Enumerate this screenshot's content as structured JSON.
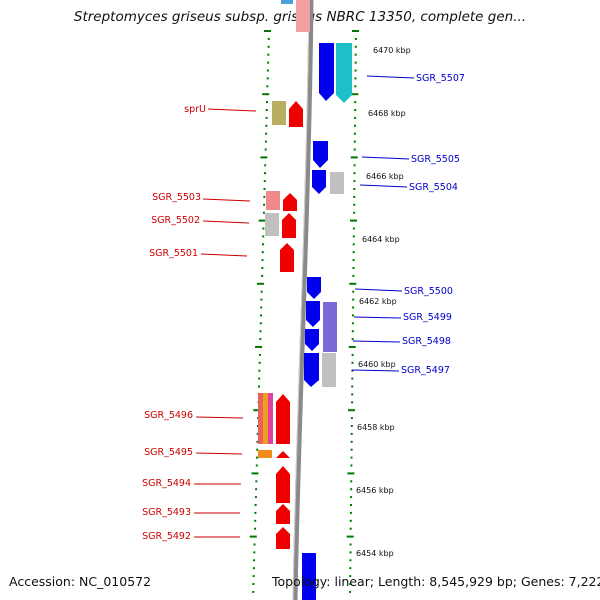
{
  "title": "Streptomyces griseus subsp. griseus NBRC 13350, complete gen...",
  "footer": {
    "accession": "Accession: NC_010572",
    "summary": "Topology: linear; Length: 8,545,929 bp; Genes: 7,222"
  },
  "colors": {
    "backbone": "#808080",
    "forward_gene": "#0000ee",
    "reverse_gene": "#ee0000",
    "left_label": "#cc0000",
    "right_label": "#0000cc",
    "tick": "#007700"
  },
  "scale_labels": [
    "6470 kbp",
    "6468 kbp",
    "6466 kbp",
    "6464 kbp",
    "6462 kbp",
    "6460 kbp",
    "6458 kbp",
    "6456 kbp",
    "6454 kbp"
  ],
  "left_gene_labels": [
    "sprU",
    "SGR_5503",
    "SGR_5502",
    "SGR_5501",
    "SGR_5496",
    "SGR_5495",
    "SGR_5494",
    "SGR_5493",
    "SGR_5492"
  ],
  "right_gene_labels": [
    "SGR_5507",
    "SGR_5505",
    "SGR_5504",
    "SGR_5500",
    "SGR_5499",
    "SGR_5498",
    "SGR_5497"
  ]
}
